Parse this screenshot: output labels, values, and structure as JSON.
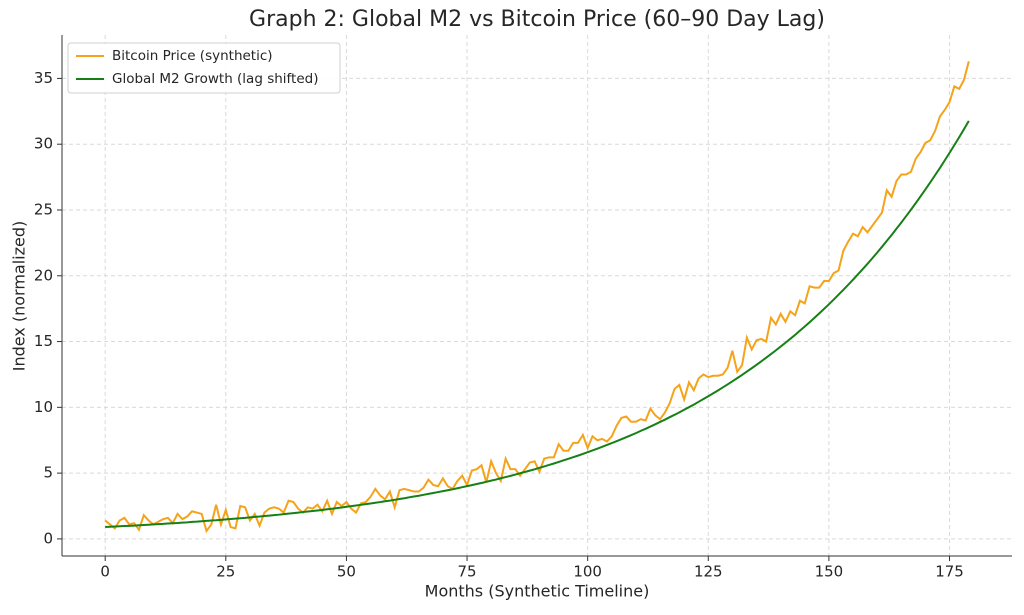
{
  "chart_data": {
    "type": "line",
    "title": "Graph 2: Global M2 vs Bitcoin Price (60–90 Day Lag)",
    "xlabel": "Months (Synthetic Timeline)",
    "ylabel": "Index (normalized)",
    "x": [
      0,
      1,
      2,
      3,
      4,
      5,
      6,
      7,
      8,
      9,
      10,
      11,
      12,
      13,
      14,
      15,
      16,
      17,
      18,
      19,
      20,
      21,
      22,
      23,
      24,
      25,
      26,
      27,
      28,
      29,
      30,
      31,
      32,
      33,
      34,
      35,
      36,
      37,
      38,
      39,
      40,
      41,
      42,
      43,
      44,
      45,
      46,
      47,
      48,
      49,
      50,
      51,
      52,
      53,
      54,
      55,
      56,
      57,
      58,
      59,
      60,
      61,
      62,
      63,
      64,
      65,
      66,
      67,
      68,
      69,
      70,
      71,
      72,
      73,
      74,
      75,
      76,
      77,
      78,
      79,
      80,
      81,
      82,
      83,
      84,
      85,
      86,
      87,
      88,
      89,
      90,
      91,
      92,
      93,
      94,
      95,
      96,
      97,
      98,
      99,
      100,
      101,
      102,
      103,
      104,
      105,
      106,
      107,
      108,
      109,
      110,
      111,
      112,
      113,
      114,
      115,
      116,
      117,
      118,
      119,
      120,
      121,
      122,
      123,
      124,
      125,
      126,
      127,
      128,
      129,
      130,
      131,
      132,
      133,
      134,
      135,
      136,
      137,
      138,
      139,
      140,
      141,
      142,
      143,
      144,
      145,
      146,
      147,
      148,
      149,
      150,
      151,
      152,
      153,
      154,
      155,
      156,
      157,
      158,
      159,
      160,
      161,
      162,
      163,
      164,
      165,
      166,
      167,
      168,
      169,
      170,
      171,
      172,
      173,
      174,
      175,
      176,
      177,
      178,
      179
    ],
    "series": [
      {
        "name": "Bitcoin Price (synthetic)",
        "color": "#f5a31a",
        "values": [
          1.4,
          1.1,
          0.8,
          1.4,
          1.6,
          1.1,
          1.2,
          0.7,
          1.8,
          1.4,
          1.1,
          1.3,
          1.5,
          1.6,
          1.2,
          1.9,
          1.5,
          1.7,
          2.1,
          2.0,
          1.9,
          0.6,
          1.1,
          2.6,
          1.1,
          2.2,
          0.9,
          0.8,
          2.5,
          2.4,
          1.4,
          1.9,
          1.0,
          2.0,
          2.3,
          2.4,
          2.3,
          2.0,
          2.9,
          2.8,
          2.3,
          2.0,
          2.4,
          2.3,
          2.6,
          2.1,
          2.9,
          1.9,
          2.8,
          2.5,
          2.8,
          2.3,
          2.0,
          2.7,
          2.8,
          3.2,
          3.8,
          3.3,
          3.0,
          3.6,
          2.4,
          3.7,
          3.8,
          3.7,
          3.6,
          3.6,
          3.9,
          4.5,
          4.1,
          4.0,
          4.6,
          4.0,
          3.8,
          4.4,
          4.8,
          4.1,
          5.2,
          5.3,
          5.6,
          4.3,
          5.9,
          5.0,
          4.4,
          6.1,
          5.3,
          5.3,
          4.8,
          5.3,
          5.8,
          5.9,
          5.1,
          6.1,
          6.2,
          6.2,
          7.2,
          6.7,
          6.7,
          7.3,
          7.3,
          7.9,
          6.9,
          7.8,
          7.5,
          7.6,
          7.4,
          7.8,
          8.6,
          9.2,
          9.3,
          8.9,
          8.9,
          9.1,
          9.0,
          9.9,
          9.4,
          9.1,
          9.6,
          10.3,
          11.4,
          11.7,
          10.6,
          11.9,
          11.3,
          12.2,
          12.5,
          12.3,
          12.4,
          12.4,
          12.5,
          13.0,
          14.3,
          12.7,
          13.2,
          15.3,
          14.4,
          15.1,
          15.2,
          15.0,
          16.8,
          16.3,
          17.1,
          16.5,
          17.3,
          17.0,
          18.1,
          17.9,
          19.2,
          19.1,
          19.1,
          19.6,
          19.6,
          20.2,
          20.4,
          21.9,
          22.6,
          23.2,
          23.0,
          23.7,
          23.3,
          23.8,
          24.3,
          24.8,
          26.5,
          26.0,
          27.2,
          27.7,
          27.7,
          27.9,
          28.9,
          29.4,
          30.1,
          30.3,
          31.0,
          32.1,
          32.6,
          33.2,
          34.4,
          34.2,
          34.9,
          36.3
        ]
      },
      {
        "name": "Global M2 Growth (lag shifted)",
        "color": "#168016",
        "values": [
          0.9,
          0.92,
          0.94,
          0.96,
          0.98,
          0.99,
          1.01,
          1.04,
          1.06,
          1.08,
          1.1,
          1.12,
          1.14,
          1.17,
          1.19,
          1.21,
          1.24,
          1.26,
          1.29,
          1.31,
          1.34,
          1.37,
          1.4,
          1.42,
          1.45,
          1.48,
          1.51,
          1.54,
          1.57,
          1.6,
          1.64,
          1.67,
          1.7,
          1.74,
          1.77,
          1.81,
          1.84,
          1.88,
          1.92,
          1.96,
          2.0,
          2.04,
          2.08,
          2.12,
          2.16,
          2.2,
          2.25,
          2.29,
          2.34,
          2.39,
          2.44,
          2.49,
          2.54,
          2.59,
          2.64,
          2.69,
          2.75,
          2.8,
          2.86,
          2.91,
          2.97,
          3.03,
          3.09,
          3.16,
          3.22,
          3.28,
          3.35,
          3.42,
          3.49,
          3.56,
          3.63,
          3.7,
          3.77,
          3.85,
          3.93,
          4.01,
          4.09,
          4.17,
          4.25,
          4.34,
          4.43,
          4.51,
          4.61,
          4.7,
          4.79,
          4.89,
          4.99,
          5.09,
          5.19,
          5.29,
          5.4,
          5.51,
          5.62,
          5.73,
          5.85,
          5.97,
          6.09,
          6.21,
          6.33,
          6.46,
          6.59,
          6.72,
          6.86,
          7.0,
          7.14,
          7.28,
          7.43,
          7.58,
          7.73,
          7.88,
          8.04,
          8.21,
          8.37,
          8.54,
          8.71,
          8.89,
          9.06,
          9.25,
          9.43,
          9.62,
          9.82,
          10.01,
          10.21,
          10.42,
          10.63,
          10.84,
          11.06,
          11.28,
          11.51,
          11.74,
          11.98,
          12.22,
          12.46,
          12.72,
          12.97,
          13.23,
          13.5,
          13.77,
          14.05,
          14.33,
          14.62,
          14.91,
          15.21,
          15.51,
          15.83,
          16.14,
          16.47,
          16.8,
          17.14,
          17.48,
          17.83,
          18.19,
          18.56,
          18.93,
          19.31,
          19.7,
          20.1,
          20.5,
          20.91,
          21.33,
          21.76,
          22.2,
          22.65,
          23.1,
          23.57,
          24.04,
          24.53,
          25.02,
          25.52,
          26.04,
          26.56,
          27.09,
          27.64,
          28.19,
          28.76,
          29.34,
          29.93,
          30.53,
          31.14,
          31.77
        ]
      }
    ],
    "xlim": [
      -8.95,
      187.95
    ],
    "ylim": [
      -1.3,
      38.3
    ],
    "xticks": [
      0,
      25,
      50,
      75,
      100,
      125,
      150,
      175
    ],
    "yticks": [
      0,
      5,
      10,
      15,
      20,
      25,
      30,
      35
    ],
    "grid": true,
    "legend": "upper left"
  }
}
